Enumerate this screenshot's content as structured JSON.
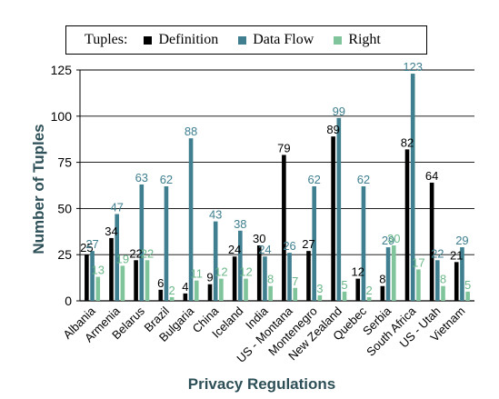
{
  "chart_data": {
    "type": "bar",
    "legend_title": "Tuples:",
    "legend_placement": "top",
    "xlabel": "Privacy Regulations",
    "ylabel": "Number of Tuples",
    "ylim": [
      0,
      125
    ],
    "yticks": [
      0,
      25,
      50,
      75,
      100,
      125
    ],
    "grid": true,
    "categories": [
      "Albania",
      "Armenia",
      "Belarus",
      "Brazil",
      "Bulgaria",
      "China",
      "Iceland",
      "India",
      "US - Montana",
      "Montenegro",
      "New Zealand",
      "Quebec",
      "Serbia",
      "South Africa",
      "US - Utah",
      "Vietnam"
    ],
    "series": [
      {
        "name": "Definition",
        "color": "#000000",
        "label_color": "#000000",
        "values": [
          25,
          34,
          22,
          6,
          4,
          9,
          24,
          30,
          79,
          27,
          89,
          12,
          8,
          82,
          64,
          21
        ]
      },
      {
        "name": "Data Flow",
        "color": "#3f7f8f",
        "label_color": "#3f7f8f",
        "values": [
          27,
          47,
          63,
          62,
          88,
          43,
          38,
          24,
          26,
          62,
          99,
          62,
          29,
          123,
          22,
          29
        ]
      },
      {
        "name": "Right",
        "color": "#7fc49a",
        "label_color": "#6cb88a",
        "values": [
          13,
          19,
          22,
          2,
          11,
          12,
          12,
          8,
          7,
          3,
          5,
          2,
          30,
          17,
          8,
          5
        ]
      }
    ]
  }
}
